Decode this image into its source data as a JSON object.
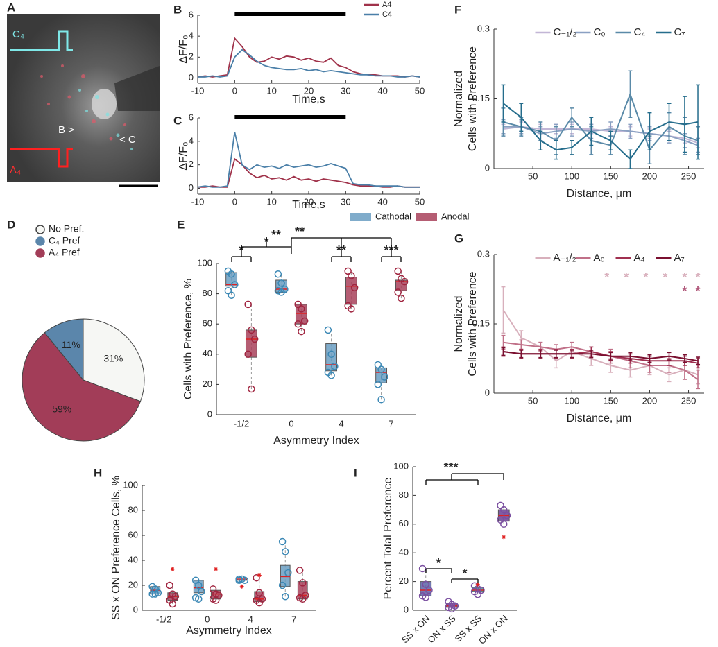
{
  "panel_labels": [
    "A",
    "B",
    "C",
    "D",
    "E",
    "F",
    "G",
    "H",
    "I"
  ],
  "image": {
    "labels": [
      "C₄",
      "A₄",
      "B >",
      "< C"
    ]
  },
  "chart_data": [
    {
      "type": "line",
      "xlabel": "Time,s",
      "ylabel": "ΔF/F₀",
      "xlim": [
        -10,
        50
      ],
      "ylim": [
        -0.5,
        6
      ],
      "xticks": [
        -10,
        0,
        10,
        20,
        30,
        40,
        50
      ],
      "yticks": [
        0,
        2,
        4,
        6
      ],
      "stimulus": [
        0,
        30
      ],
      "legend": "upper right",
      "x": [
        -10,
        -8,
        -6,
        -4,
        -2,
        0,
        2,
        4,
        6,
        8,
        10,
        12,
        14,
        16,
        18,
        20,
        22,
        24,
        26,
        28,
        30,
        32,
        34,
        36,
        38,
        40,
        42,
        44,
        46,
        48,
        50
      ],
      "series": [
        {
          "name": "A4",
          "color": "#a0324a",
          "values": [
            0.1,
            0.2,
            0.1,
            0.2,
            0.3,
            3.8,
            3.0,
            2.0,
            1.5,
            1.6,
            2.0,
            1.8,
            2.1,
            2.0,
            1.7,
            1.9,
            1.6,
            1.5,
            1.9,
            1.2,
            1.0,
            0.6,
            0.4,
            0.3,
            0.3,
            0.2,
            0.2,
            0.2,
            0.1,
            0.2,
            0.1
          ]
        },
        {
          "name": "C4",
          "color": "#4a7fa8",
          "values": [
            0.1,
            0.1,
            0.2,
            0.1,
            0.2,
            2.0,
            2.7,
            2.2,
            1.6,
            1.2,
            1.0,
            0.9,
            0.8,
            0.8,
            0.9,
            0.7,
            0.8,
            0.6,
            0.7,
            0.6,
            0.5,
            0.4,
            0.3,
            0.3,
            0.2,
            0.2,
            0.2,
            0.1,
            0.1,
            0.2,
            0.1
          ]
        }
      ]
    },
    {
      "type": "line",
      "xlabel": "Time,s",
      "ylabel": "ΔF/F₀",
      "xlim": [
        -10,
        50
      ],
      "ylim": [
        -0.5,
        6
      ],
      "xticks": [
        -10,
        0,
        10,
        20,
        30,
        40,
        50
      ],
      "yticks": [
        0,
        2,
        4,
        6
      ],
      "stimulus": [
        0,
        30
      ],
      "x": [
        -10,
        -8,
        -6,
        -4,
        -2,
        0,
        2,
        4,
        6,
        8,
        10,
        12,
        14,
        16,
        18,
        20,
        22,
        24,
        26,
        28,
        30,
        32,
        34,
        36,
        38,
        40,
        42,
        44,
        46,
        48,
        50
      ],
      "series": [
        {
          "color": "#a0324a",
          "values": [
            0.1,
            0.1,
            0.2,
            0.1,
            0.1,
            2.5,
            2.0,
            1.3,
            0.9,
            1.1,
            0.8,
            0.9,
            0.7,
            1.0,
            0.7,
            0.8,
            0.6,
            0.8,
            0.7,
            0.6,
            0.5,
            0.3,
            0.2,
            0.2,
            0.2,
            0.1,
            0.1,
            0.2,
            0.1,
            0.1,
            0.1
          ]
        },
        {
          "color": "#4a7fa8",
          "values": [
            0.1,
            0.2,
            0.1,
            0.1,
            0.2,
            4.8,
            2.0,
            1.6,
            2.0,
            1.8,
            1.9,
            1.7,
            2.0,
            1.8,
            1.9,
            2.0,
            1.8,
            1.9,
            2.1,
            1.9,
            1.7,
            0.4,
            0.3,
            0.3,
            0.2,
            0.2,
            0.2,
            0.2,
            0.1,
            0.1,
            0.1
          ]
        }
      ]
    },
    {
      "type": "pie",
      "categories": [
        "No Pref.",
        "C₄ Pref",
        "A₄ Pref"
      ],
      "values": [
        31,
        11,
        59
      ],
      "value_labels": [
        "31%",
        "11%",
        "59%"
      ],
      "colors": [
        "#f6f7f4",
        "#5b86ab",
        "#a23d58"
      ]
    },
    {
      "type": "box",
      "xlabel": "Asymmetry Index",
      "ylabel": "Cells with Preference, %",
      "ylim": [
        0,
        100
      ],
      "yticks": [
        0,
        20,
        40,
        60,
        80,
        100
      ],
      "categories": [
        "-1/2",
        "0",
        "4",
        "7"
      ],
      "annotations": [
        "*",
        "*",
        "**",
        "**",
        "***",
        "**"
      ],
      "series": [
        {
          "name": "Cathodal",
          "color": "#6a9ec2",
          "point_color": "#3b88b5",
          "boxes": [
            {
              "min": 79,
              "q1": 85,
              "median": 86,
              "q3": 94,
              "max": 95,
              "points": [
                95,
                93,
                86,
                82,
                79
              ]
            },
            {
              "min": 81,
              "q1": 81,
              "median": 83,
              "q3": 89,
              "max": 93,
              "points": [
                93,
                87,
                83,
                82,
                81
              ]
            },
            {
              "min": 26,
              "q1": 29,
              "median": 33,
              "q3": 47,
              "max": 56,
              "points": [
                56,
                40,
                32,
                28,
                26
              ]
            },
            {
              "min": 10,
              "q1": 21,
              "median": 28,
              "q3": 31,
              "max": 33,
              "points": [
                33,
                30,
                25,
                20,
                10
              ]
            }
          ]
        },
        {
          "name": "Anodal",
          "color": "#a8415a",
          "point_color": "#a0243f",
          "boxes": [
            {
              "min": 17,
              "q1": 38,
              "median": 50,
              "q3": 56,
              "max": 73,
              "points": [
                73,
                56,
                50,
                40,
                17
              ]
            },
            {
              "min": 55,
              "q1": 60,
              "median": 67,
              "q3": 73,
              "max": 73,
              "points": [
                73,
                70,
                62,
                60,
                55
              ]
            },
            {
              "min": 70,
              "q1": 73,
              "median": 85,
              "q3": 91,
              "max": 95,
              "points": [
                95,
                92,
                84,
                72,
                70
              ]
            },
            {
              "min": 77,
              "q1": 82,
              "median": 88,
              "q3": 89,
              "max": 95,
              "points": [
                95,
                90,
                88,
                81,
                77
              ]
            }
          ]
        }
      ]
    },
    {
      "type": "line",
      "xlabel": "Distance, μm",
      "ylabel": [
        "Normalized",
        "Cells with Preference"
      ],
      "xlim": [
        0,
        270
      ],
      "ylim": [
        0,
        0.3
      ],
      "xticks": [
        50,
        100,
        150,
        200,
        250
      ],
      "yticks": [
        0,
        0.15,
        0.3
      ],
      "legend": "upper center",
      "x": [
        12,
        35,
        60,
        80,
        100,
        125,
        150,
        175,
        200,
        225,
        245,
        262
      ],
      "series": [
        {
          "name": "C₋₁/₂",
          "color": "#c2b6d6",
          "values": [
            0.085,
            0.09,
            0.085,
            0.085,
            0.085,
            0.085,
            0.08,
            0.08,
            0.075,
            0.07,
            0.065,
            0.055
          ],
          "errors": [
            0.01,
            0.01,
            0.01,
            0.01,
            0.01,
            0.01,
            0.01,
            0.01,
            0.01,
            0.01,
            0.01,
            0.01
          ]
        },
        {
          "name": "C₀",
          "color": "#8aa0c2",
          "values": [
            0.09,
            0.09,
            0.075,
            0.08,
            0.085,
            0.08,
            0.085,
            0.08,
            0.075,
            0.07,
            0.06,
            0.05
          ],
          "errors": [
            0.015,
            0.015,
            0.015,
            0.015,
            0.015,
            0.015,
            0.015,
            0.015,
            0.015,
            0.015,
            0.015,
            0.015
          ]
        },
        {
          "name": "C₄",
          "color": "#5a8aa8",
          "values": [
            0.1,
            0.09,
            0.08,
            0.06,
            0.11,
            0.06,
            0.05,
            0.16,
            0.04,
            0.09,
            0.07,
            0.06
          ],
          "errors": [
            0.03,
            0.02,
            0.02,
            0.03,
            0.02,
            0.03,
            0.02,
            0.05,
            0.03,
            0.03,
            0.04,
            0.03
          ]
        },
        {
          "name": "C₇",
          "color": "#256d8c",
          "values": [
            0.14,
            0.11,
            0.06,
            0.04,
            0.045,
            0.08,
            0.06,
            0.02,
            0.08,
            0.1,
            0.095,
            0.1
          ],
          "errors": [
            0.04,
            0.03,
            0.02,
            0.02,
            0.015,
            0.03,
            0.02,
            0.02,
            0.04,
            0.04,
            0.06,
            0.08
          ]
        }
      ]
    },
    {
      "type": "line",
      "xlabel": "Distance, μm",
      "ylabel": [
        "Normalized",
        "Cells with Preference"
      ],
      "xlim": [
        0,
        270
      ],
      "ylim": [
        0,
        0.3
      ],
      "xticks": [
        50,
        100,
        150,
        200,
        250
      ],
      "yticks": [
        0,
        0.15,
        0.3
      ],
      "legend": "upper center",
      "x": [
        12,
        35,
        60,
        80,
        100,
        125,
        150,
        175,
        200,
        225,
        245,
        262
      ],
      "annotations": [
        {
          "text": "*",
          "x": 145,
          "y": 0.255,
          "color": "#d8aebb"
        },
        {
          "text": "*",
          "x": 170,
          "y": 0.255,
          "color": "#d8aebb"
        },
        {
          "text": "*",
          "x": 195,
          "y": 0.255,
          "color": "#d8aebb"
        },
        {
          "text": "*",
          "x": 220,
          "y": 0.255,
          "color": "#d8aebb"
        },
        {
          "text": "*",
          "x": 245,
          "y": 0.255,
          "color": "#d8aebb"
        },
        {
          "text": "*",
          "x": 262,
          "y": 0.255,
          "color": "#d8aebb"
        },
        {
          "text": "*",
          "x": 245,
          "y": 0.225,
          "color": "#b0587a"
        },
        {
          "text": "*",
          "x": 262,
          "y": 0.225,
          "color": "#b0587a"
        }
      ],
      "series": [
        {
          "name": "A₋₁/₂",
          "color": "#d8b0bc",
          "values": [
            0.18,
            0.12,
            0.1,
            0.07,
            0.09,
            0.075,
            0.06,
            0.05,
            0.06,
            0.04,
            0.05,
            0.04
          ],
          "errors": [
            0.05,
            0.015,
            0.01,
            0.015,
            0.01,
            0.015,
            0.015,
            0.015,
            0.02,
            0.015,
            0.02,
            0.02
          ]
        },
        {
          "name": "A₀",
          "color": "#c07088",
          "values": [
            0.11,
            0.105,
            0.1,
            0.095,
            0.1,
            0.09,
            0.08,
            0.07,
            0.06,
            0.06,
            0.05,
            0.03
          ],
          "errors": [
            0.015,
            0.01,
            0.01,
            0.01,
            0.01,
            0.01,
            0.015,
            0.015,
            0.015,
            0.015,
            0.02,
            0.02
          ]
        },
        {
          "name": "A₄",
          "color": "#a03050",
          "values": [
            0.09,
            0.085,
            0.085,
            0.085,
            0.085,
            0.09,
            0.08,
            0.075,
            0.07,
            0.07,
            0.07,
            0.065
          ],
          "errors": [
            0.01,
            0.01,
            0.01,
            0.01,
            0.01,
            0.01,
            0.01,
            0.01,
            0.01,
            0.01,
            0.01,
            0.01
          ]
        },
        {
          "name": "A₇",
          "color": "#7a1030",
          "values": [
            0.09,
            0.085,
            0.085,
            0.085,
            0.085,
            0.085,
            0.08,
            0.08,
            0.075,
            0.08,
            0.075,
            0.07
          ],
          "errors": [
            0.008,
            0.008,
            0.008,
            0.008,
            0.008,
            0.008,
            0.008,
            0.008,
            0.008,
            0.008,
            0.008,
            0.008
          ]
        }
      ]
    },
    {
      "type": "box",
      "xlabel": "Asymmetry Index",
      "ylabel": "SS x ON Preference Cells, %",
      "ylim": [
        0,
        100
      ],
      "yticks": [
        0,
        20,
        40,
        60,
        80,
        100
      ],
      "categories": [
        "-1/2",
        "0",
        "4",
        "7"
      ],
      "series": [
        {
          "color": "#6a9ec2",
          "point_color": "#3b88b5",
          "boxes": [
            {
              "min": 13,
              "q1": 13,
              "median": 16,
              "q3": 19,
              "max": 19,
              "points": [
                19,
                17,
                14,
                13,
                13
              ]
            },
            {
              "min": 9,
              "q1": 14,
              "median": 18,
              "q3": 24,
              "max": 25,
              "points": [
                24,
                20,
                15,
                10,
                9
              ]
            },
            {
              "min": 24,
              "q1": 24,
              "median": 25,
              "q3": 25,
              "max": 25,
              "points": [
                25,
                25,
                24,
                24
              ],
              "outliers": [
                19
              ]
            },
            {
              "min": 11,
              "q1": 19,
              "median": 27,
              "q3": 36,
              "max": 55,
              "points": [
                55,
                47,
                30,
                20,
                11
              ]
            }
          ]
        },
        {
          "color": "#a8415a",
          "point_color": "#a0243f",
          "boxes": [
            {
              "min": 5,
              "q1": 8,
              "median": 11,
              "q3": 14,
              "max": 20,
              "points": [
                20,
                13,
                11,
                8,
                5
              ],
              "outliers": [
                33
              ]
            },
            {
              "min": 8,
              "q1": 9,
              "median": 13,
              "q3": 16,
              "max": 19,
              "points": [
                17,
                13,
                12,
                9,
                8
              ],
              "outliers": [
                33
              ]
            },
            {
              "min": 6,
              "q1": 7,
              "median": 9,
              "q3": 15,
              "max": 26,
              "points": [
                26,
                14,
                9,
                8,
                6
              ],
              "outliers": [
                28
              ]
            },
            {
              "min": 8,
              "q1": 9,
              "median": 12,
              "q3": 23,
              "max": 33,
              "points": [
                32,
                22,
                12,
                10,
                9
              ]
            }
          ]
        }
      ]
    },
    {
      "type": "box",
      "ylabel": "Percent Total Preference",
      "ylim": [
        0,
        100
      ],
      "yticks": [
        0,
        20,
        40,
        60,
        80,
        100
      ],
      "categories": [
        "SS x ON",
        "ON x SS",
        "SS x SS",
        "ON x ON"
      ],
      "xtick_rotation": -45,
      "annotations": [
        "***",
        "*",
        "*"
      ],
      "series": [
        {
          "colors": [
            "#5b63a8",
            "#7b3f8a",
            "#4c8f9a",
            "#6a3f92"
          ],
          "point_color": "#7a4fa0",
          "boxes": [
            {
              "min": 9,
              "q1": 10,
              "median": 14,
              "q3": 20,
              "max": 29,
              "points": [
                29,
                18,
                14,
                10,
                9
              ]
            },
            {
              "min": 1,
              "q1": 2,
              "median": 3,
              "q3": 5,
              "max": 6,
              "points": [
                6,
                4,
                3,
                2,
                1
              ]
            },
            {
              "min": 11,
              "q1": 13,
              "median": 14,
              "q3": 16,
              "max": 17,
              "points": [
                17,
                15,
                14,
                13,
                11
              ],
              "outliers": [
                18
              ]
            },
            {
              "min": 60,
              "q1": 62,
              "median": 66,
              "q3": 70,
              "max": 73,
              "points": [
                73,
                70,
                66,
                63,
                60
              ],
              "outliers": [
                51
              ]
            }
          ]
        }
      ]
    }
  ]
}
